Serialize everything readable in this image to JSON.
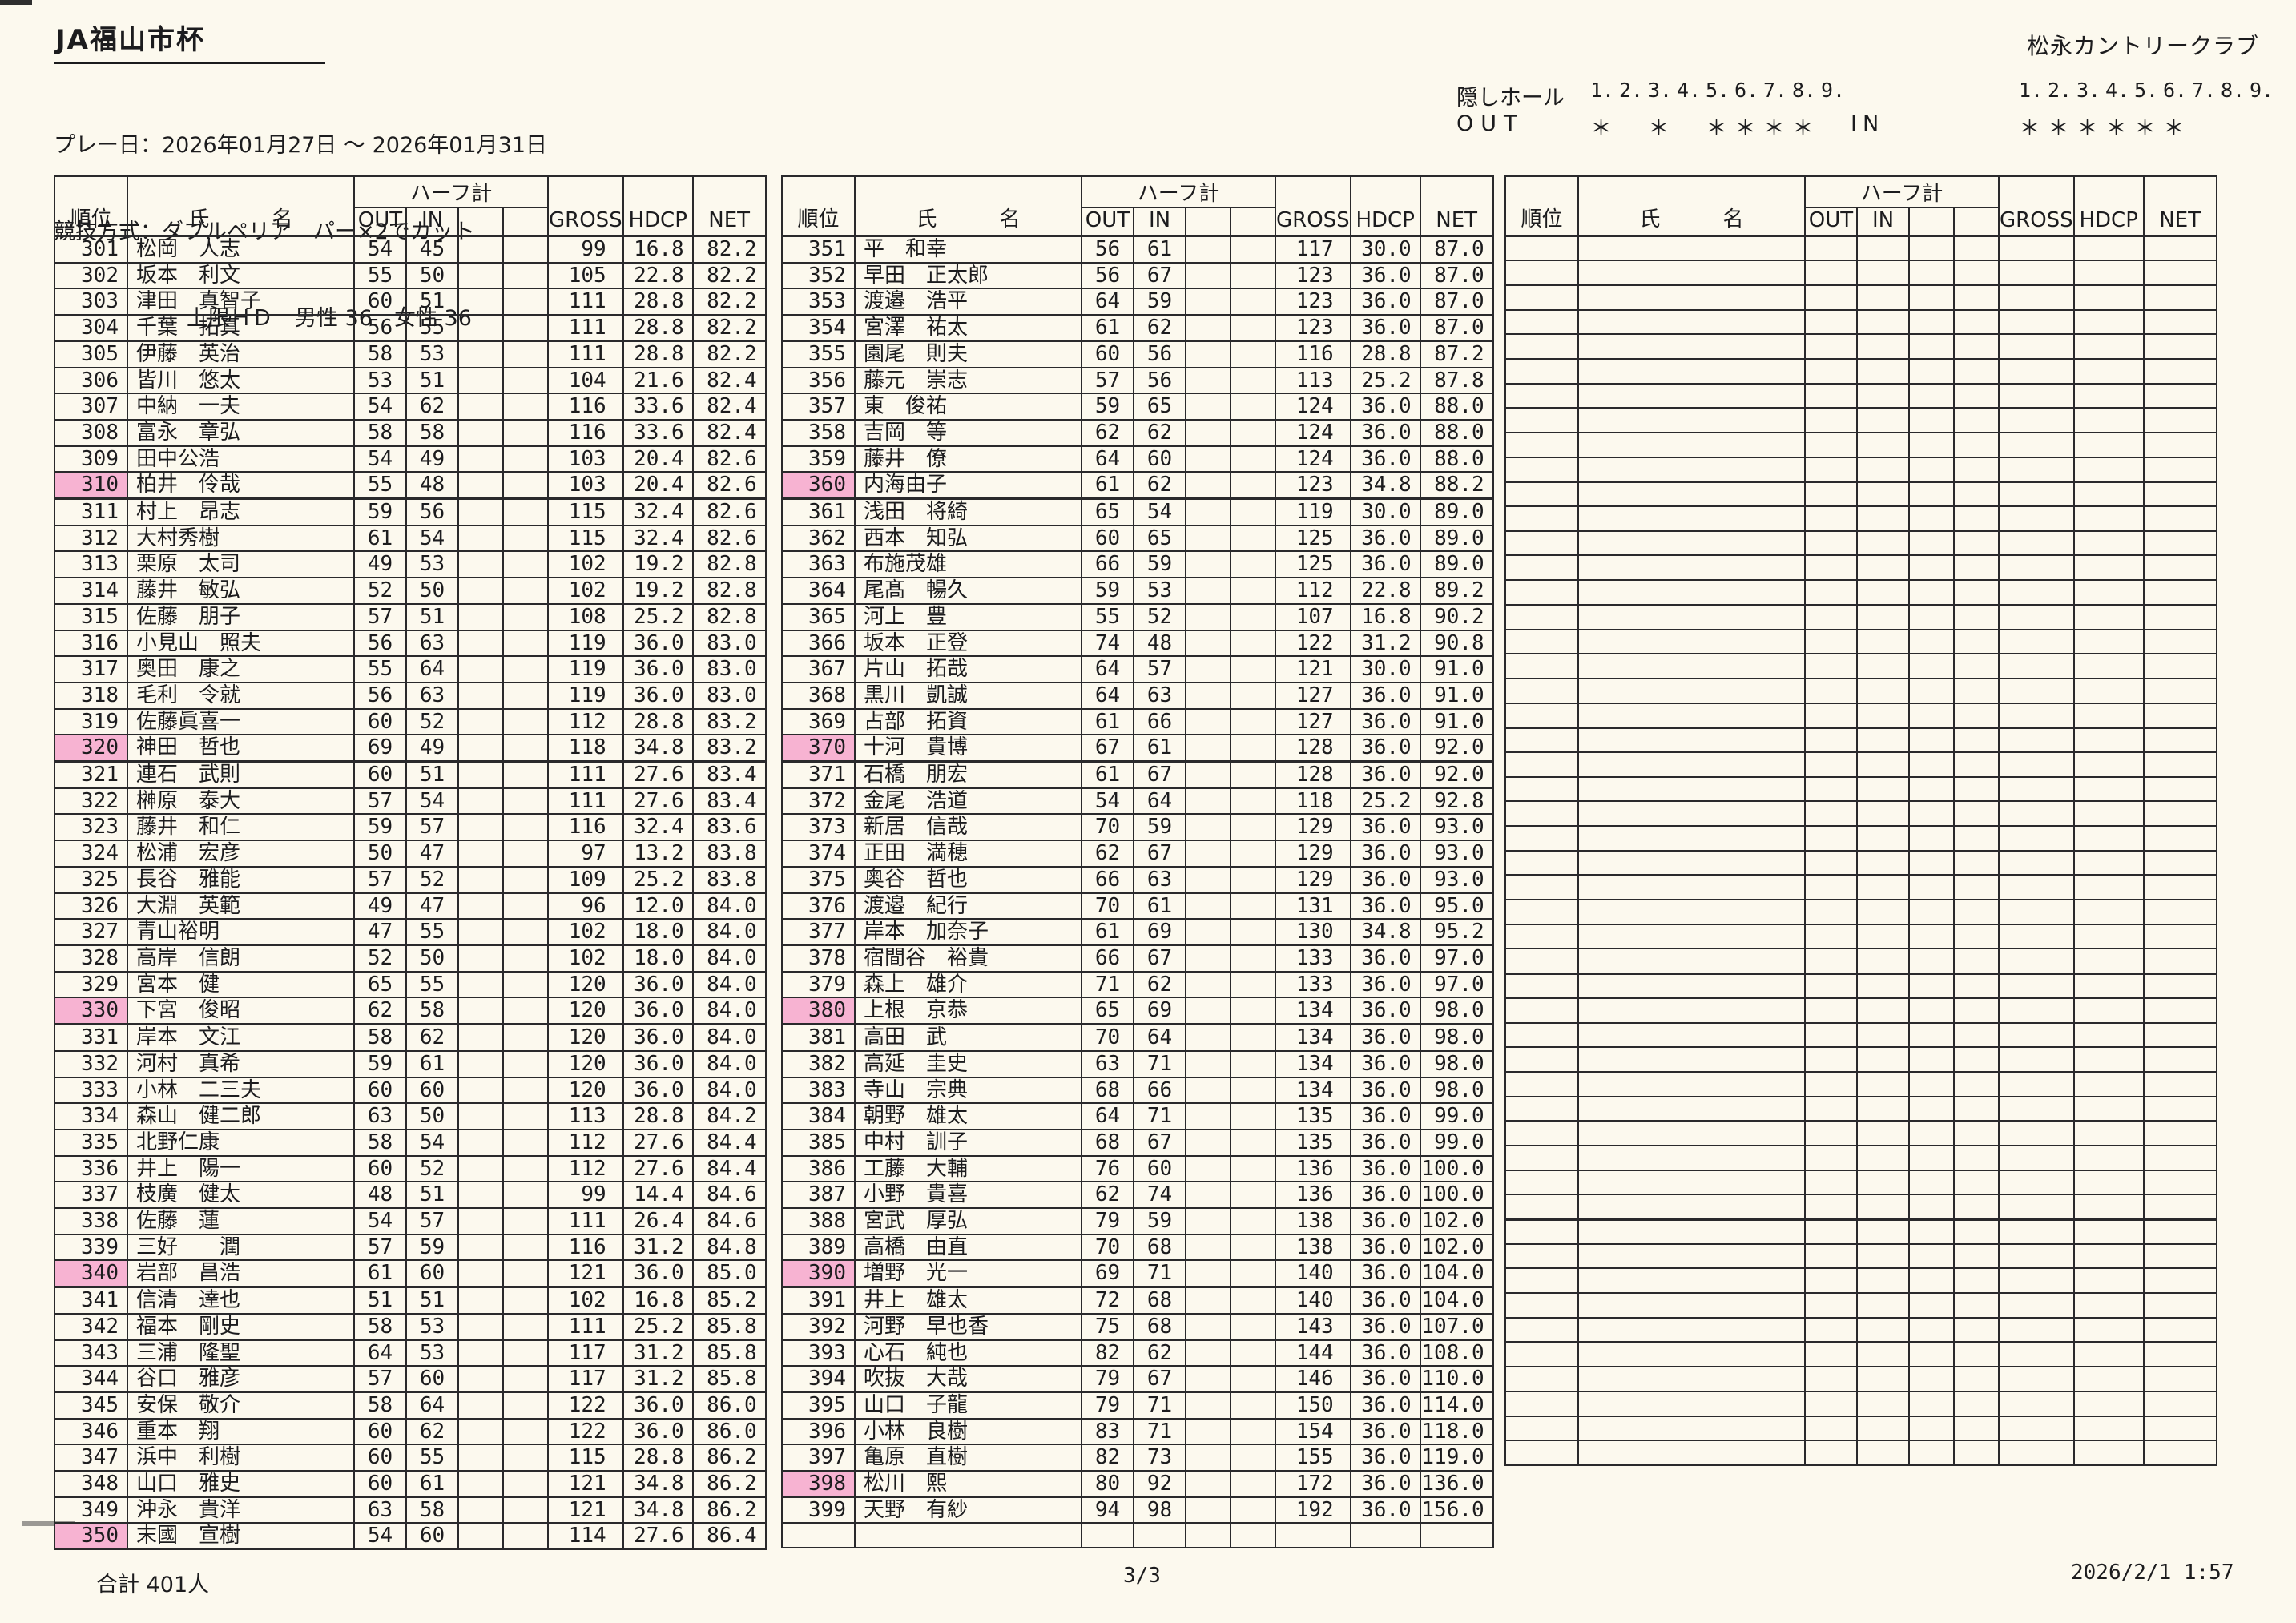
{
  "colors": {
    "highlight": "#f7b3d2"
  },
  "header": {
    "title": "JA福山市杯",
    "club": "松永カントリークラブ",
    "play_date_line": "プレー日：2026年01月27日 ～ 2026年01月31日",
    "method_line": "競技方式：ダブルペリア　パー×2でカット",
    "limit_line": "上限ＨＤ　男性 36　女性 36"
  },
  "hidden_holes": {
    "label": "隠しホール",
    "out_label": "OUT",
    "in_label": "IN",
    "numbers": [
      "1.",
      "2.",
      "3.",
      "4.",
      "5.",
      "6.",
      "7.",
      "8.",
      "9."
    ],
    "out_marks": [
      true,
      false,
      true,
      false,
      true,
      true,
      true,
      true,
      false
    ],
    "in_marks": [
      true,
      true,
      true,
      true,
      true,
      true,
      false,
      false,
      false
    ],
    "mark_glyph": "＊"
  },
  "results": {
    "headers": {
      "rank": "順位",
      "name": "氏　　　名",
      "half_total": "ハーフ計",
      "out": "OUT",
      "in": "IN",
      "gross": "GROSS",
      "hdcp": "HDCP",
      "net": "NET"
    },
    "left": {
      "players": [
        {
          "rank": 301,
          "name": "松岡　人志",
          "out": 54,
          "in": 45,
          "gross": 99,
          "hdcp": "16.8",
          "net": "82.2"
        },
        {
          "rank": 302,
          "name": "坂本　利文",
          "out": 55,
          "in": 50,
          "gross": 105,
          "hdcp": "22.8",
          "net": "82.2"
        },
        {
          "rank": 303,
          "name": "津田　真智子",
          "out": 60,
          "in": 51,
          "gross": 111,
          "hdcp": "28.8",
          "net": "82.2"
        },
        {
          "rank": 304,
          "name": "千葉　拓真",
          "out": 56,
          "in": 55,
          "gross": 111,
          "hdcp": "28.8",
          "net": "82.2"
        },
        {
          "rank": 305,
          "name": "伊藤　英治",
          "out": 58,
          "in": 53,
          "gross": 111,
          "hdcp": "28.8",
          "net": "82.2"
        },
        {
          "rank": 306,
          "name": "皆川　悠太",
          "out": 53,
          "in": 51,
          "gross": 104,
          "hdcp": "21.6",
          "net": "82.4"
        },
        {
          "rank": 307,
          "name": "中納　一夫",
          "out": 54,
          "in": 62,
          "gross": 116,
          "hdcp": "33.6",
          "net": "82.4"
        },
        {
          "rank": 308,
          "name": "富永　章弘",
          "out": 58,
          "in": 58,
          "gross": 116,
          "hdcp": "33.6",
          "net": "82.4"
        },
        {
          "rank": 309,
          "name": "田中公浩",
          "out": 54,
          "in": 49,
          "gross": 103,
          "hdcp": "20.4",
          "net": "82.6"
        },
        {
          "rank": 310,
          "name": "柏井　伶哉",
          "out": 55,
          "in": 48,
          "gross": 103,
          "hdcp": "20.4",
          "net": "82.6",
          "hl": true
        },
        {
          "rank": 311,
          "name": "村上　昂志",
          "out": 59,
          "in": 56,
          "gross": 115,
          "hdcp": "32.4",
          "net": "82.6"
        },
        {
          "rank": 312,
          "name": "大村秀樹",
          "out": 61,
          "in": 54,
          "gross": 115,
          "hdcp": "32.4",
          "net": "82.6"
        },
        {
          "rank": 313,
          "name": "栗原　太司",
          "out": 49,
          "in": 53,
          "gross": 102,
          "hdcp": "19.2",
          "net": "82.8"
        },
        {
          "rank": 314,
          "name": "藤井　敏弘",
          "out": 52,
          "in": 50,
          "gross": 102,
          "hdcp": "19.2",
          "net": "82.8"
        },
        {
          "rank": 315,
          "name": "佐藤　朋子",
          "out": 57,
          "in": 51,
          "gross": 108,
          "hdcp": "25.2",
          "net": "82.8"
        },
        {
          "rank": 316,
          "name": "小見山　照夫",
          "out": 56,
          "in": 63,
          "gross": 119,
          "hdcp": "36.0",
          "net": "83.0"
        },
        {
          "rank": 317,
          "name": "奥田　康之",
          "out": 55,
          "in": 64,
          "gross": 119,
          "hdcp": "36.0",
          "net": "83.0"
        },
        {
          "rank": 318,
          "name": "毛利　令就",
          "out": 56,
          "in": 63,
          "gross": 119,
          "hdcp": "36.0",
          "net": "83.0"
        },
        {
          "rank": 319,
          "name": "佐藤眞喜一",
          "out": 60,
          "in": 52,
          "gross": 112,
          "hdcp": "28.8",
          "net": "83.2"
        },
        {
          "rank": 320,
          "name": "神田　哲也",
          "out": 69,
          "in": 49,
          "gross": 118,
          "hdcp": "34.8",
          "net": "83.2",
          "hl": true
        },
        {
          "rank": 321,
          "name": "連石　武則",
          "out": 60,
          "in": 51,
          "gross": 111,
          "hdcp": "27.6",
          "net": "83.4"
        },
        {
          "rank": 322,
          "name": "榊原　泰大",
          "out": 57,
          "in": 54,
          "gross": 111,
          "hdcp": "27.6",
          "net": "83.4"
        },
        {
          "rank": 323,
          "name": "藤井　和仁",
          "out": 59,
          "in": 57,
          "gross": 116,
          "hdcp": "32.4",
          "net": "83.6"
        },
        {
          "rank": 324,
          "name": "松浦　宏彦",
          "out": 50,
          "in": 47,
          "gross": 97,
          "hdcp": "13.2",
          "net": "83.8"
        },
        {
          "rank": 325,
          "name": "長谷　雅能",
          "out": 57,
          "in": 52,
          "gross": 109,
          "hdcp": "25.2",
          "net": "83.8"
        },
        {
          "rank": 326,
          "name": "大淵　英範",
          "out": 49,
          "in": 47,
          "gross": 96,
          "hdcp": "12.0",
          "net": "84.0"
        },
        {
          "rank": 327,
          "name": "青山裕明",
          "out": 47,
          "in": 55,
          "gross": 102,
          "hdcp": "18.0",
          "net": "84.0"
        },
        {
          "rank": 328,
          "name": "高岸　信朗",
          "out": 52,
          "in": 50,
          "gross": 102,
          "hdcp": "18.0",
          "net": "84.0"
        },
        {
          "rank": 329,
          "name": "宮本　健",
          "out": 65,
          "in": 55,
          "gross": 120,
          "hdcp": "36.0",
          "net": "84.0"
        },
        {
          "rank": 330,
          "name": "下宮　俊昭",
          "out": 62,
          "in": 58,
          "gross": 120,
          "hdcp": "36.0",
          "net": "84.0",
          "hl": true
        },
        {
          "rank": 331,
          "name": "岸本　文江",
          "out": 58,
          "in": 62,
          "gross": 120,
          "hdcp": "36.0",
          "net": "84.0"
        },
        {
          "rank": 332,
          "name": "河村　真希",
          "out": 59,
          "in": 61,
          "gross": 120,
          "hdcp": "36.0",
          "net": "84.0"
        },
        {
          "rank": 333,
          "name": "小林　二三夫",
          "out": 60,
          "in": 60,
          "gross": 120,
          "hdcp": "36.0",
          "net": "84.0"
        },
        {
          "rank": 334,
          "name": "森山　健二郎",
          "out": 63,
          "in": 50,
          "gross": 113,
          "hdcp": "28.8",
          "net": "84.2"
        },
        {
          "rank": 335,
          "name": "北野仁康",
          "out": 58,
          "in": 54,
          "gross": 112,
          "hdcp": "27.6",
          "net": "84.4"
        },
        {
          "rank": 336,
          "name": "井上　陽一",
          "out": 60,
          "in": 52,
          "gross": 112,
          "hdcp": "27.6",
          "net": "84.4"
        },
        {
          "rank": 337,
          "name": "枝廣　健太",
          "out": 48,
          "in": 51,
          "gross": 99,
          "hdcp": "14.4",
          "net": "84.6"
        },
        {
          "rank": 338,
          "name": "佐藤　蓮",
          "out": 54,
          "in": 57,
          "gross": 111,
          "hdcp": "26.4",
          "net": "84.6"
        },
        {
          "rank": 339,
          "name": "三好　　潤",
          "out": 57,
          "in": 59,
          "gross": 116,
          "hdcp": "31.2",
          "net": "84.8"
        },
        {
          "rank": 340,
          "name": "岩部　昌浩",
          "out": 61,
          "in": 60,
          "gross": 121,
          "hdcp": "36.0",
          "net": "85.0",
          "hl": true
        },
        {
          "rank": 341,
          "name": "信清　達也",
          "out": 51,
          "in": 51,
          "gross": 102,
          "hdcp": "16.8",
          "net": "85.2"
        },
        {
          "rank": 342,
          "name": "福本　剛史",
          "out": 58,
          "in": 53,
          "gross": 111,
          "hdcp": "25.2",
          "net": "85.8"
        },
        {
          "rank": 343,
          "name": "三浦　隆聖",
          "out": 64,
          "in": 53,
          "gross": 117,
          "hdcp": "31.2",
          "net": "85.8"
        },
        {
          "rank": 344,
          "name": "谷口　雅彦",
          "out": 57,
          "in": 60,
          "gross": 117,
          "hdcp": "31.2",
          "net": "85.8"
        },
        {
          "rank": 345,
          "name": "安保　敬介",
          "out": 58,
          "in": 64,
          "gross": 122,
          "hdcp": "36.0",
          "net": "86.0"
        },
        {
          "rank": 346,
          "name": "重本　翔",
          "out": 60,
          "in": 62,
          "gross": 122,
          "hdcp": "36.0",
          "net": "86.0"
        },
        {
          "rank": 347,
          "name": "浜中　利樹",
          "out": 60,
          "in": 55,
          "gross": 115,
          "hdcp": "28.8",
          "net": "86.2"
        },
        {
          "rank": 348,
          "name": "山口　雅史",
          "out": 60,
          "in": 61,
          "gross": 121,
          "hdcp": "34.8",
          "net": "86.2"
        },
        {
          "rank": 349,
          "name": "沖永　貴洋",
          "out": 63,
          "in": 58,
          "gross": 121,
          "hdcp": "34.8",
          "net": "86.2"
        },
        {
          "rank": 350,
          "name": "末國　宣樹",
          "out": 54,
          "in": 60,
          "gross": 114,
          "hdcp": "27.6",
          "net": "86.4",
          "hl": true
        }
      ]
    },
    "middle": {
      "players": [
        {
          "rank": 351,
          "name": "平　和幸",
          "out": 56,
          "in": 61,
          "gross": 117,
          "hdcp": "30.0",
          "net": "87.0"
        },
        {
          "rank": 352,
          "name": "早田　正太郎",
          "out": 56,
          "in": 67,
          "gross": 123,
          "hdcp": "36.0",
          "net": "87.0"
        },
        {
          "rank": 353,
          "name": "渡邉　浩平",
          "out": 64,
          "in": 59,
          "gross": 123,
          "hdcp": "36.0",
          "net": "87.0"
        },
        {
          "rank": 354,
          "name": "宮澤　祐太",
          "out": 61,
          "in": 62,
          "gross": 123,
          "hdcp": "36.0",
          "net": "87.0"
        },
        {
          "rank": 355,
          "name": "園尾　則夫",
          "out": 60,
          "in": 56,
          "gross": 116,
          "hdcp": "28.8",
          "net": "87.2"
        },
        {
          "rank": 356,
          "name": "藤元　崇志",
          "out": 57,
          "in": 56,
          "gross": 113,
          "hdcp": "25.2",
          "net": "87.8"
        },
        {
          "rank": 357,
          "name": "東　俊祐",
          "out": 59,
          "in": 65,
          "gross": 124,
          "hdcp": "36.0",
          "net": "88.0"
        },
        {
          "rank": 358,
          "name": "吉岡　等",
          "out": 62,
          "in": 62,
          "gross": 124,
          "hdcp": "36.0",
          "net": "88.0"
        },
        {
          "rank": 359,
          "name": "藤井　僚",
          "out": 64,
          "in": 60,
          "gross": 124,
          "hdcp": "36.0",
          "net": "88.0"
        },
        {
          "rank": 360,
          "name": "内海由子",
          "out": 61,
          "in": 62,
          "gross": 123,
          "hdcp": "34.8",
          "net": "88.2",
          "hl": true
        },
        {
          "rank": 361,
          "name": "浅田　将綺",
          "out": 65,
          "in": 54,
          "gross": 119,
          "hdcp": "30.0",
          "net": "89.0"
        },
        {
          "rank": 362,
          "name": "西本　知弘",
          "out": 60,
          "in": 65,
          "gross": 125,
          "hdcp": "36.0",
          "net": "89.0"
        },
        {
          "rank": 363,
          "name": "布施茂雄",
          "out": 66,
          "in": 59,
          "gross": 125,
          "hdcp": "36.0",
          "net": "89.0"
        },
        {
          "rank": 364,
          "name": "尾髙　暢久",
          "out": 59,
          "in": 53,
          "gross": 112,
          "hdcp": "22.8",
          "net": "89.2"
        },
        {
          "rank": 365,
          "name": "河上　豊",
          "out": 55,
          "in": 52,
          "gross": 107,
          "hdcp": "16.8",
          "net": "90.2"
        },
        {
          "rank": 366,
          "name": "坂本　正登",
          "out": 74,
          "in": 48,
          "gross": 122,
          "hdcp": "31.2",
          "net": "90.8"
        },
        {
          "rank": 367,
          "name": "片山　拓哉",
          "out": 64,
          "in": 57,
          "gross": 121,
          "hdcp": "30.0",
          "net": "91.0"
        },
        {
          "rank": 368,
          "name": "黒川　凱誠",
          "out": 64,
          "in": 63,
          "gross": 127,
          "hdcp": "36.0",
          "net": "91.0"
        },
        {
          "rank": 369,
          "name": "占部　拓資",
          "out": 61,
          "in": 66,
          "gross": 127,
          "hdcp": "36.0",
          "net": "91.0"
        },
        {
          "rank": 370,
          "name": "十河　貴博",
          "out": 67,
          "in": 61,
          "gross": 128,
          "hdcp": "36.0",
          "net": "92.0",
          "hl": true
        },
        {
          "rank": 371,
          "name": "石橋　朋宏",
          "out": 61,
          "in": 67,
          "gross": 128,
          "hdcp": "36.0",
          "net": "92.0"
        },
        {
          "rank": 372,
          "name": "金尾　浩道",
          "out": 54,
          "in": 64,
          "gross": 118,
          "hdcp": "25.2",
          "net": "92.8"
        },
        {
          "rank": 373,
          "name": "新居　信哉",
          "out": 70,
          "in": 59,
          "gross": 129,
          "hdcp": "36.0",
          "net": "93.0"
        },
        {
          "rank": 374,
          "name": "正田　満穂",
          "out": 62,
          "in": 67,
          "gross": 129,
          "hdcp": "36.0",
          "net": "93.0"
        },
        {
          "rank": 375,
          "name": "奥谷　哲也",
          "out": 66,
          "in": 63,
          "gross": 129,
          "hdcp": "36.0",
          "net": "93.0"
        },
        {
          "rank": 376,
          "name": "渡邉　紀行",
          "out": 70,
          "in": 61,
          "gross": 131,
          "hdcp": "36.0",
          "net": "95.0"
        },
        {
          "rank": 377,
          "name": "岸本　加奈子",
          "out": 61,
          "in": 69,
          "gross": 130,
          "hdcp": "34.8",
          "net": "95.2"
        },
        {
          "rank": 378,
          "name": "宿間谷　裕貴",
          "out": 66,
          "in": 67,
          "gross": 133,
          "hdcp": "36.0",
          "net": "97.0"
        },
        {
          "rank": 379,
          "name": "森上　雄介",
          "out": 71,
          "in": 62,
          "gross": 133,
          "hdcp": "36.0",
          "net": "97.0"
        },
        {
          "rank": 380,
          "name": "上根　京恭",
          "out": 65,
          "in": 69,
          "gross": 134,
          "hdcp": "36.0",
          "net": "98.0",
          "hl": true
        },
        {
          "rank": 381,
          "name": "高田　武",
          "out": 70,
          "in": 64,
          "gross": 134,
          "hdcp": "36.0",
          "net": "98.0"
        },
        {
          "rank": 382,
          "name": "高延　圭史",
          "out": 63,
          "in": 71,
          "gross": 134,
          "hdcp": "36.0",
          "net": "98.0"
        },
        {
          "rank": 383,
          "name": "寺山　宗典",
          "out": 68,
          "in": 66,
          "gross": 134,
          "hdcp": "36.0",
          "net": "98.0"
        },
        {
          "rank": 384,
          "name": "朝野　雄太",
          "out": 64,
          "in": 71,
          "gross": 135,
          "hdcp": "36.0",
          "net": "99.0"
        },
        {
          "rank": 385,
          "name": "中村　訓子",
          "out": 68,
          "in": 67,
          "gross": 135,
          "hdcp": "36.0",
          "net": "99.0"
        },
        {
          "rank": 386,
          "name": "工藤　大輔",
          "out": 76,
          "in": 60,
          "gross": 136,
          "hdcp": "36.0",
          "net": "100.0"
        },
        {
          "rank": 387,
          "name": "小野　貴喜",
          "out": 62,
          "in": 74,
          "gross": 136,
          "hdcp": "36.0",
          "net": "100.0"
        },
        {
          "rank": 388,
          "name": "宮武　厚弘",
          "out": 79,
          "in": 59,
          "gross": 138,
          "hdcp": "36.0",
          "net": "102.0"
        },
        {
          "rank": 389,
          "name": "高橋　由直",
          "out": 70,
          "in": 68,
          "gross": 138,
          "hdcp": "36.0",
          "net": "102.0"
        },
        {
          "rank": 390,
          "name": "増野　光一",
          "out": 69,
          "in": 71,
          "gross": 140,
          "hdcp": "36.0",
          "net": "104.0",
          "hl": true
        },
        {
          "rank": 391,
          "name": "井上　雄太",
          "out": 72,
          "in": 68,
          "gross": 140,
          "hdcp": "36.0",
          "net": "104.0"
        },
        {
          "rank": 392,
          "name": "河野　早也香",
          "out": 75,
          "in": 68,
          "gross": 143,
          "hdcp": "36.0",
          "net": "107.0"
        },
        {
          "rank": 393,
          "name": "心石　純也",
          "out": 82,
          "in": 62,
          "gross": 144,
          "hdcp": "36.0",
          "net": "108.0"
        },
        {
          "rank": 394,
          "name": "吹抜　大哉",
          "out": 79,
          "in": 67,
          "gross": 146,
          "hdcp": "36.0",
          "net": "110.0"
        },
        {
          "rank": 395,
          "name": "山口　子龍",
          "out": 79,
          "in": 71,
          "gross": 150,
          "hdcp": "36.0",
          "net": "114.0"
        },
        {
          "rank": 396,
          "name": "小林　良樹",
          "out": 83,
          "in": 71,
          "gross": 154,
          "hdcp": "36.0",
          "net": "118.0"
        },
        {
          "rank": 397,
          "name": "亀原　直樹",
          "out": 82,
          "in": 73,
          "gross": 155,
          "hdcp": "36.0",
          "net": "119.0"
        },
        {
          "rank": 398,
          "name": "松川　熙",
          "out": 80,
          "in": 92,
          "gross": 172,
          "hdcp": "36.0",
          "net": "136.0",
          "hl": true
        },
        {
          "rank": 399,
          "name": "天野　有紗",
          "out": 94,
          "in": 98,
          "gross": 192,
          "hdcp": "36.0",
          "net": "156.0"
        }
      ]
    },
    "right": {
      "players": []
    }
  },
  "footer": {
    "total": "合計 401人",
    "page": "3/3",
    "datetime": "2026/2/1 1:57"
  }
}
